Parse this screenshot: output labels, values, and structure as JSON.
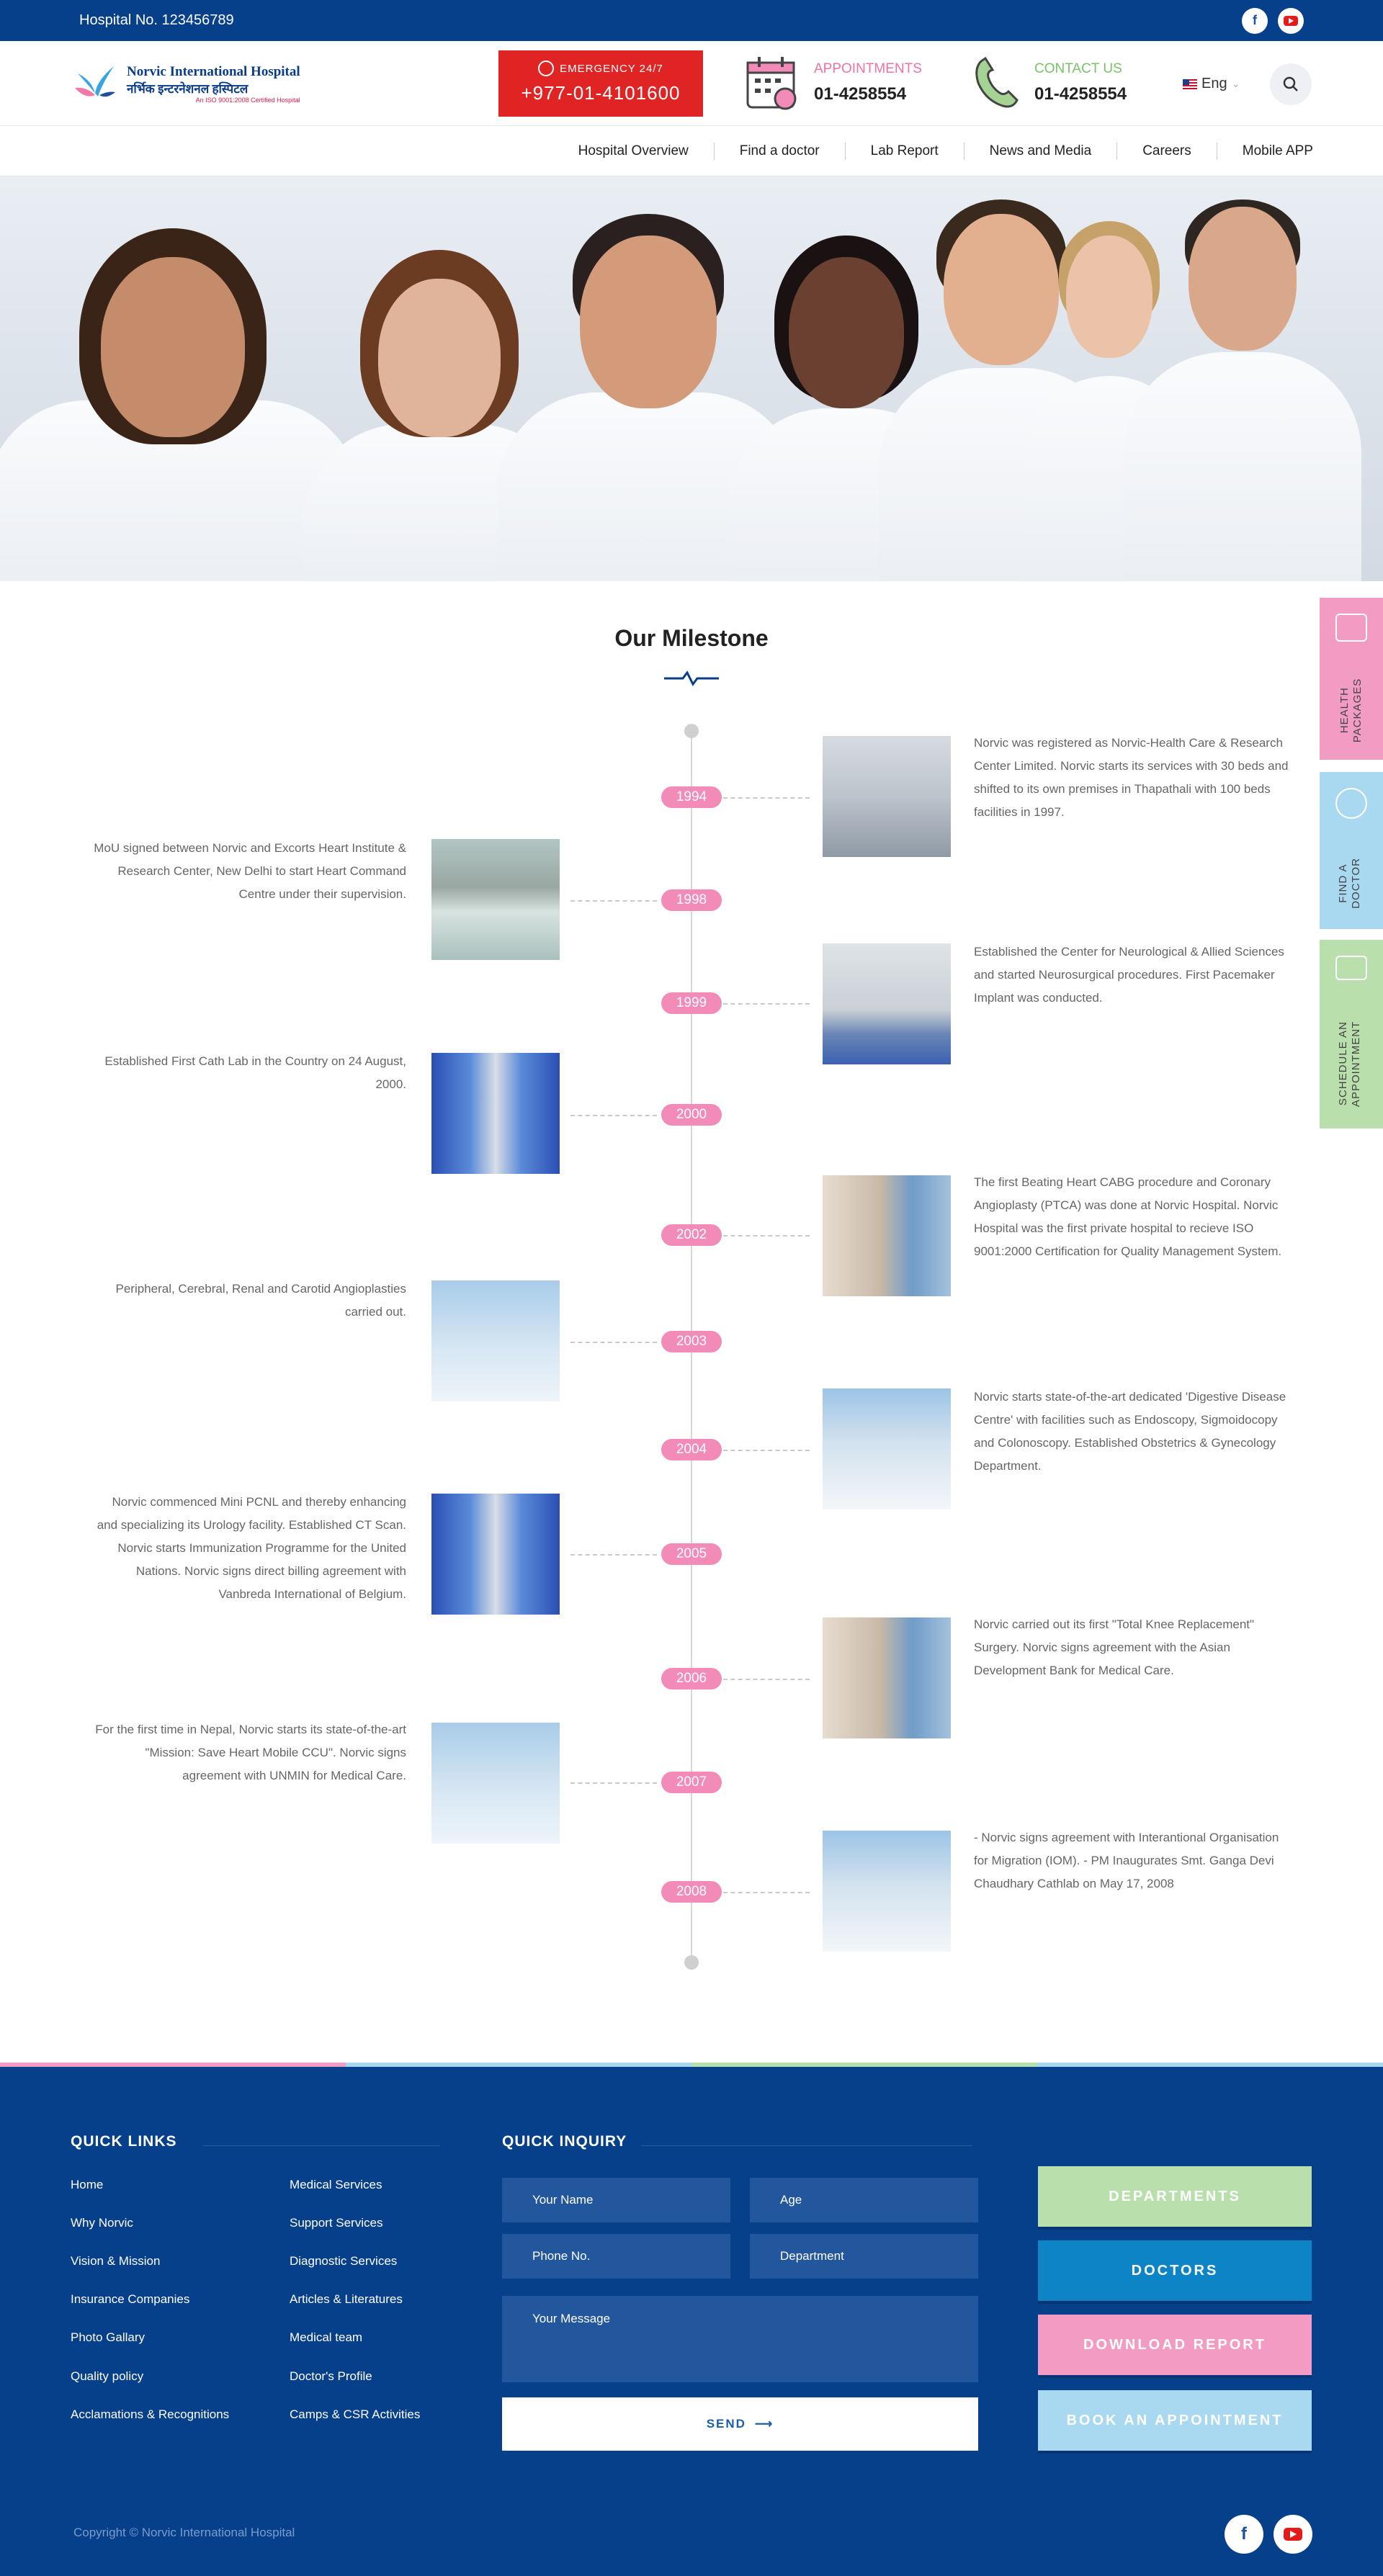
{
  "topbar": {
    "hospital_no": "Hospital No. 123456789"
  },
  "header": {
    "logo_line1": "Norvic International Hospital",
    "logo_line2": "नर्भिक इन्टरनेशनल हस्पिटल",
    "logo_line3": "An ISO 9001:2008 Certified Hospital",
    "emergency_label": "EMERGENCY 24/7",
    "emergency_number": "+977-01-4101600",
    "appointments_label": "APPOINTMENTS",
    "appointments_number": "01-4258554",
    "contact_label": "CONTACT US",
    "contact_number": "01-4258554",
    "language": "Eng"
  },
  "nav": [
    "Hospital Overview",
    "Find a doctor",
    "Lab Report",
    "News and Media",
    "Careers",
    "Mobile APP"
  ],
  "milestone": {
    "title": "Our Milestone",
    "items": [
      {
        "year": "1994",
        "side": "right",
        "text": "Norvic was registered as Norvic-Health Care & Research Center Limited. Norvic starts its services with 30 beds and shifted to its own premises in Thapathali with 100 beds facilities in 1997."
      },
      {
        "year": "1998",
        "side": "left",
        "text": "MoU signed between Norvic and Excorts Heart Institute & Research Center, New Delhi to start Heart Command Centre under their supervision."
      },
      {
        "year": "1999",
        "side": "right",
        "text": "Established the Center for Neurological & Allied Sciences and started Neurosurgical procedures. First Pacemaker Implant was conducted."
      },
      {
        "year": "2000",
        "side": "left",
        "text": "Established First Cath Lab in the Country on 24 August, 2000."
      },
      {
        "year": "2002",
        "side": "right",
        "text": "The first Beating Heart CABG procedure and Coronary Angioplasty (PTCA) was done at Norvic Hospital. Norvic Hospital was the first private hospital to recieve  ISO 9001:2000 Certification for Quality Management System."
      },
      {
        "year": "2003",
        "side": "left",
        "text": "Peripheral, Cerebral, Renal and Carotid Angioplasties carried out."
      },
      {
        "year": "2004",
        "side": "right",
        "text": "Norvic starts state-of-the-art dedicated 'Digestive Disease Centre' with facilities such as Endoscopy, Sigmoidocopy and Colonoscopy. Established Obstetrics & Gynecology Department."
      },
      {
        "year": "2005",
        "side": "left",
        "text": "Norvic commenced Mini PCNL and thereby enhancing and specializing its Urology facility. Established CT Scan. Norvic starts Immunization Programme for the United Nations. Norvic signs direct billing agreement with Vanbreda International of Belgium."
      },
      {
        "year": "2006",
        "side": "right",
        "text": "Norvic carried out its first \"Total Knee Replacement\" Surgery. Norvic signs agreement with the Asian Development Bank for Medical Care."
      },
      {
        "year": "2007",
        "side": "left",
        "text": "For the first time in Nepal, Norvic starts its state-of-the-art \"Mission: Save Heart Mobile CCU\". Norvic signs agreement with UNMIN for Medical Care."
      },
      {
        "year": "2008",
        "side": "right",
        "text": "- Norvic signs agreement with Interantional Organisation for Migration (IOM). - PM Inaugurates Smt. Ganga Devi Chaudhary Cathlab on May 17, 2008"
      }
    ]
  },
  "sidetabs": [
    {
      "label": "HEALTH PACKAGES",
      "color": "#f29cc3"
    },
    {
      "label": "FIND A DOCTOR",
      "color": "#a9d8f1"
    },
    {
      "label": "SCHEDULE AN APPOINTMENT",
      "color": "#b9e0ac"
    }
  ],
  "footer": {
    "quick_links_title": "QUICK LINKS",
    "links_col1": [
      "Home",
      "Why Norvic",
      "Vision & Mission",
      "Insurance Companies",
      "Photo Gallary",
      "Quality policy",
      "Acclamations & Recognitions"
    ],
    "links_col2": [
      "Medical Services",
      "Support Services",
      "Diagnostic Services",
      "Articles & Literatures",
      "Medical team",
      "Doctor's Profile",
      "Camps & CSR Activities"
    ],
    "inquiry_title": "QUICK INQUIRY",
    "name_placeholder": "Your Name",
    "age_placeholder": "Age",
    "phone_placeholder": "Phone No.",
    "department_placeholder": "Department",
    "message_placeholder": "Your Message",
    "send_label": "SEND",
    "buttons": [
      {
        "label": "DEPARTMENTS",
        "color": "#b9e0ac"
      },
      {
        "label": "DOCTORS",
        "color": "#0c84c6"
      },
      {
        "label": "DOWNLOAD REPORT",
        "color": "#f29cc3"
      },
      {
        "label": "BOOK AN APPOINTMENT",
        "color": "#a9d8f1"
      }
    ],
    "copyright": "Copyright © Norvic International Hospital"
  },
  "colors": {
    "brand_blue": "#063f8a",
    "emergency_red": "#e02424",
    "pink": "#f28bb8",
    "green": "#79c16a"
  }
}
